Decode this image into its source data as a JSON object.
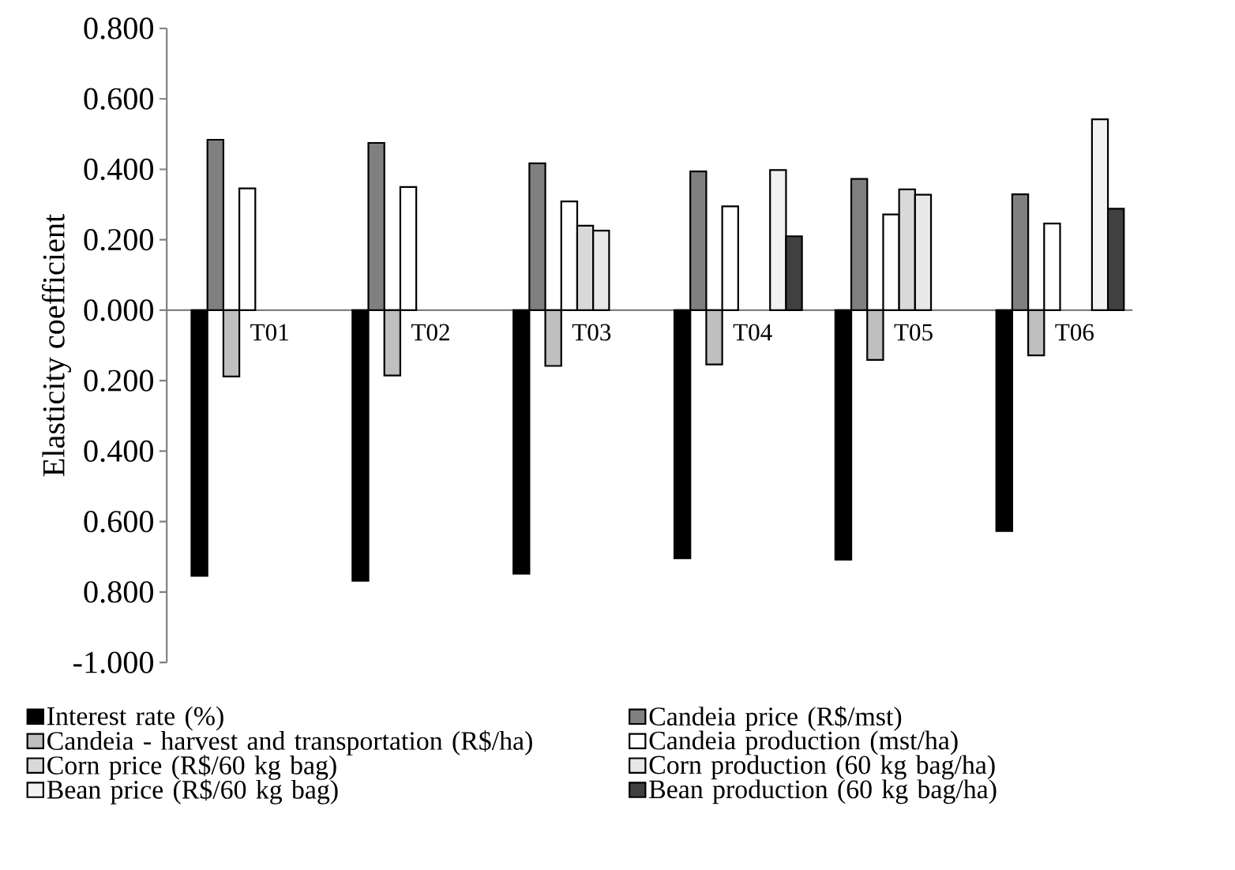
{
  "chart_data": {
    "type": "bar",
    "ylabel": "Elasticity coefficient",
    "categories": [
      "T01",
      "T02",
      "T03",
      "T04",
      "T05",
      "T06"
    ],
    "series": [
      {
        "name": "Interest rate  (%)",
        "color": "#000000",
        "values": [
          -0.754,
          -0.768,
          -0.748,
          -0.704,
          -0.708,
          -0.627
        ]
      },
      {
        "name": "Candeia price (R$/mst)",
        "color": "#808080",
        "values": [
          0.484,
          0.475,
          0.417,
          0.394,
          0.373,
          0.329
        ]
      },
      {
        "name": "Candeia - harvest and transportation (R$/ha)",
        "color": "#bfbfbf",
        "values": [
          -0.188,
          -0.185,
          -0.158,
          -0.154,
          -0.141,
          -0.128
        ]
      },
      {
        "name": "Candeia production (mst/ha)",
        "color": "#ffffff",
        "values": [
          0.346,
          0.35,
          0.309,
          0.295,
          0.272,
          0.246
        ]
      },
      {
        "name": "Corn price (R$/60 kg bag)",
        "color": "#d9d9d9",
        "values": [
          null,
          null,
          0.24,
          null,
          0.343,
          null
        ]
      },
      {
        "name": "Corn production (60 kg bag/ha)",
        "color": "#e8e8e8",
        "values": [
          null,
          null,
          0.226,
          null,
          0.328,
          null
        ]
      },
      {
        "name": "Bean price (R$/60 kg bag)",
        "color": "#f2f2f2",
        "values": [
          null,
          null,
          null,
          0.398,
          null,
          0.542
        ]
      },
      {
        "name": "Bean production (60 kg bag/ha)",
        "color": "#404040",
        "values": [
          null,
          null,
          null,
          0.21,
          null,
          0.288
        ]
      }
    ],
    "ylim": [
      -1.0,
      0.8
    ],
    "yticks": [
      {
        "value": 0.8,
        "label": "0.800"
      },
      {
        "value": 0.6,
        "label": "0.600"
      },
      {
        "value": 0.4,
        "label": "0.400"
      },
      {
        "value": 0.2,
        "label": "0.200"
      },
      {
        "value": 0.0,
        "label": "0.000"
      },
      {
        "value": -0.2,
        "label": "0.200"
      },
      {
        "value": -0.4,
        "label": "0.400"
      },
      {
        "value": -0.6,
        "label": "0.600"
      },
      {
        "value": -0.8,
        "label": "0.800"
      },
      {
        "value": -1.0,
        "label": "-1.000"
      }
    ],
    "grid": false,
    "legend": "bottom"
  }
}
